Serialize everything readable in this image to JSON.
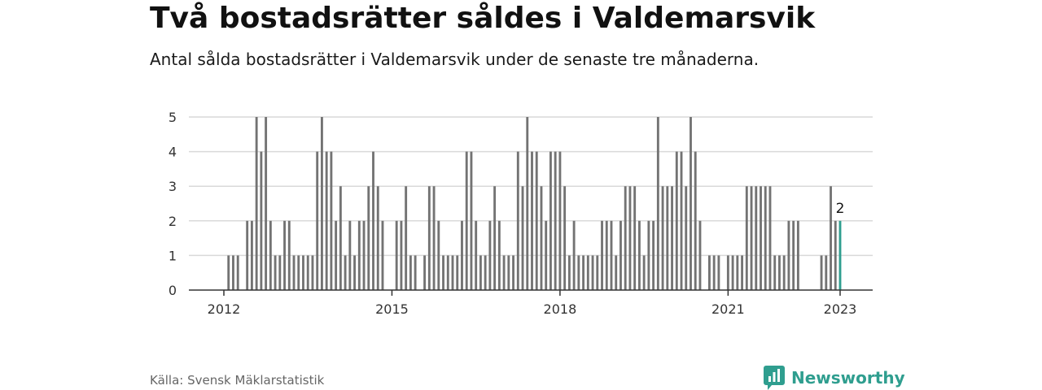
{
  "header": {
    "title": "Två bostadsrätter såldes i Valdemarsvik",
    "subtitle": "Antal sålda bostadsrätter i Valdemarsvik under de senaste tre månaderna."
  },
  "footer": {
    "source": "Källa: Svensk Mäklarstatistik",
    "brand": "Newsworthy",
    "brand_icon": "bar-chart-speech-bubble-icon"
  },
  "colors": {
    "bar": "#737373",
    "highlight": "#2f9e8f",
    "grid": "#d9d9d9",
    "axis": "#333333",
    "brand": "#2f9e8f"
  },
  "chart_data": {
    "type": "bar",
    "x_start": "2012-01",
    "x_end": "2023-01",
    "x_interval": "month",
    "ylim": [
      0,
      5
    ],
    "yticks": [
      0,
      1,
      2,
      3,
      4,
      5
    ],
    "xticks": [
      "2012",
      "2015",
      "2018",
      "2021",
      "2023"
    ],
    "grid": true,
    "highlight_last": true,
    "last_value_label": "2",
    "values": [
      0,
      1,
      1,
      1,
      0,
      2,
      2,
      5,
      4,
      5,
      2,
      1,
      1,
      2,
      2,
      1,
      1,
      1,
      1,
      1,
      4,
      5,
      4,
      4,
      2,
      3,
      1,
      2,
      1,
      2,
      2,
      3,
      4,
      3,
      2,
      0,
      0,
      2,
      2,
      3,
      1,
      1,
      0,
      1,
      3,
      3,
      2,
      1,
      1,
      1,
      1,
      2,
      4,
      4,
      2,
      1,
      1,
      2,
      3,
      2,
      1,
      1,
      1,
      4,
      3,
      5,
      4,
      4,
      3,
      2,
      4,
      4,
      4,
      3,
      1,
      2,
      1,
      1,
      1,
      1,
      1,
      2,
      2,
      2,
      1,
      2,
      3,
      3,
      3,
      2,
      1,
      2,
      2,
      5,
      3,
      3,
      3,
      4,
      4,
      3,
      5,
      4,
      2,
      0,
      1,
      1,
      1,
      0,
      1,
      1,
      1,
      1,
      3,
      3,
      3,
      3,
      3,
      3,
      1,
      1,
      1,
      2,
      2,
      2,
      0,
      0,
      0,
      0,
      1,
      1,
      3,
      2,
      2
    ]
  }
}
